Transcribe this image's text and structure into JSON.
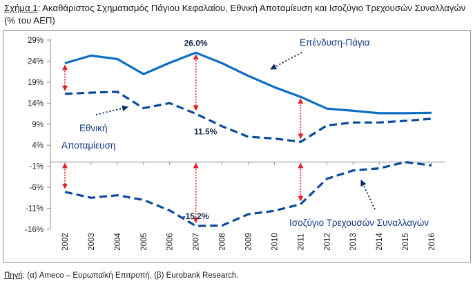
{
  "title": {
    "label": "Σχήμα 1",
    "text": ": Ακαθάριστος Σχηματισμός Πάγιου Κεφαλαίου, Εθνική Αποταμίευση και Ισοζύγιο Τρεχουσών Συναλλαγών (% του ΑΕΠ)"
  },
  "source": {
    "label": "Πηγή",
    "text": ": (α) Ameco – Ευρωπαϊκή Επιτροπή, (β) Eurobank Research."
  },
  "colors": {
    "series": "#0a4a9a",
    "investment_line": "#0b6cc4",
    "arrows": "#e02020",
    "axis": "#888888"
  },
  "chart_data": {
    "type": "line",
    "x": [
      "2002",
      "2003",
      "2004",
      "2005",
      "2006",
      "2007",
      "2008",
      "2009",
      "2010",
      "2011",
      "2012",
      "2013",
      "2014",
      "2015",
      "2016"
    ],
    "y_ticks": [
      "29%",
      "24%",
      "19%",
      "14%",
      "9%",
      "4%",
      "-1%",
      "-6%",
      "-11%",
      "-16%"
    ],
    "ylim": [
      -16,
      29
    ],
    "grid": false,
    "series": [
      {
        "name": "Επένδυση-Πάγια",
        "style": "solid",
        "values": [
          23.5,
          25.3,
          24.5,
          20.9,
          23.6,
          26.0,
          23.5,
          20.5,
          17.8,
          15.5,
          12.7,
          12.2,
          11.6,
          11.6,
          11.7
        ]
      },
      {
        "name": "Εθνική Αποταμίευση",
        "style": "dashed",
        "values": [
          16.2,
          16.5,
          16.7,
          12.8,
          14.0,
          11.5,
          8.5,
          6.0,
          5.6,
          4.8,
          8.7,
          9.4,
          9.4,
          9.8,
          10.3
        ]
      },
      {
        "name": "Ισοζύγιο Τρεχουσών Συναλλαγών",
        "style": "dashed",
        "values": [
          -7.1,
          -8.5,
          -7.9,
          -9.0,
          -11.5,
          -15.2,
          -15.1,
          -12.4,
          -11.6,
          -10.0,
          -4.0,
          -2.0,
          -1.5,
          0.0,
          -0.8
        ]
      }
    ],
    "data_labels": [
      {
        "text": "26.0%",
        "series": 0,
        "index": 5
      },
      {
        "text": "11.5%",
        "series": 1,
        "index": 5
      },
      {
        "text": "-15.2%",
        "series": 2,
        "index": 5
      }
    ],
    "annotation_labels": {
      "investment": "Επένδυση-Πάγια",
      "savings_line1": "Εθνική",
      "savings_line2": "Αποταμίευση",
      "current_account": "Ισοζύγιο Τρεχουσών Συναλλαγών"
    },
    "gap_arrow_years": [
      "2002",
      "2007",
      "2011"
    ]
  }
}
